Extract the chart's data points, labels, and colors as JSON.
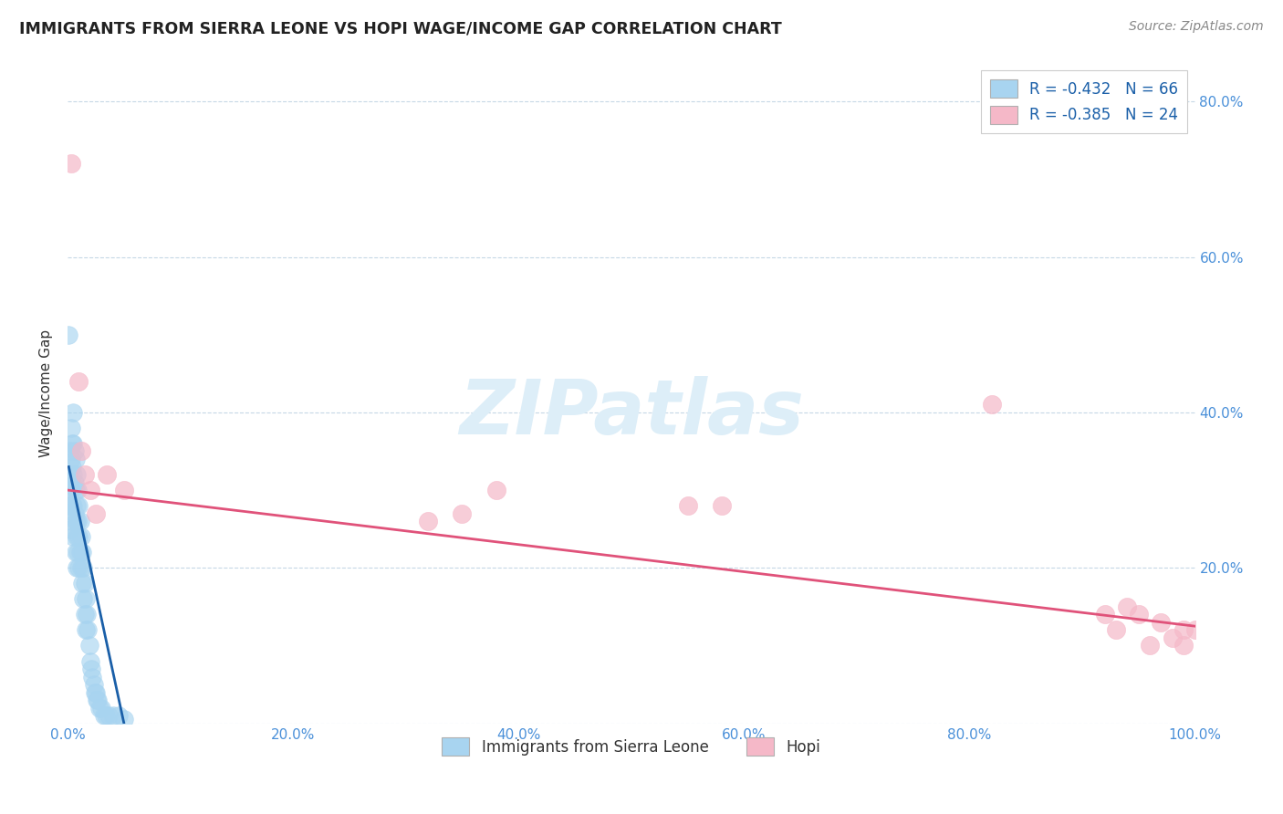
{
  "title": "IMMIGRANTS FROM SIERRA LEONE VS HOPI WAGE/INCOME GAP CORRELATION CHART",
  "source": "Source: ZipAtlas.com",
  "ylabel": "Wage/Income Gap",
  "legend_label_1": "Immigrants from Sierra Leone",
  "legend_label_2": "Hopi",
  "R1": -0.432,
  "N1": 66,
  "R2": -0.385,
  "N2": 24,
  "color1": "#a8d4f0",
  "color2": "#f5b8c8",
  "line_color1": "#1a5fa8",
  "line_color2": "#e0527a",
  "watermark_color": "#ddeef8",
  "xlim": [
    0.0,
    1.0
  ],
  "ylim": [
    0.0,
    0.85
  ],
  "xticks": [
    0.0,
    0.2,
    0.4,
    0.6,
    0.8,
    1.0
  ],
  "yticks": [
    0.0,
    0.2,
    0.4,
    0.6,
    0.8
  ],
  "xtick_labels": [
    "0.0%",
    "20.0%",
    "40.0%",
    "60.0%",
    "80.0%",
    "100.0%"
  ],
  "ytick_labels_right": [
    "",
    "20.0%",
    "40.0%",
    "60.0%",
    "80.0%"
  ],
  "blue_points_x": [
    0.001,
    0.001,
    0.002,
    0.002,
    0.002,
    0.003,
    0.003,
    0.003,
    0.003,
    0.004,
    0.004,
    0.004,
    0.005,
    0.005,
    0.005,
    0.005,
    0.005,
    0.006,
    0.006,
    0.006,
    0.007,
    0.007,
    0.007,
    0.007,
    0.008,
    0.008,
    0.008,
    0.008,
    0.009,
    0.009,
    0.009,
    0.01,
    0.01,
    0.01,
    0.011,
    0.011,
    0.012,
    0.012,
    0.013,
    0.013,
    0.014,
    0.014,
    0.015,
    0.015,
    0.016,
    0.016,
    0.017,
    0.018,
    0.019,
    0.02,
    0.021,
    0.022,
    0.023,
    0.024,
    0.025,
    0.026,
    0.027,
    0.028,
    0.03,
    0.032,
    0.034,
    0.036,
    0.04,
    0.045,
    0.05,
    0.001
  ],
  "blue_points_y": [
    0.32,
    0.28,
    0.35,
    0.3,
    0.25,
    0.38,
    0.34,
    0.3,
    0.26,
    0.36,
    0.33,
    0.28,
    0.4,
    0.36,
    0.32,
    0.28,
    0.24,
    0.35,
    0.31,
    0.27,
    0.34,
    0.3,
    0.26,
    0.22,
    0.32,
    0.28,
    0.24,
    0.2,
    0.3,
    0.26,
    0.22,
    0.28,
    0.24,
    0.2,
    0.26,
    0.22,
    0.24,
    0.2,
    0.22,
    0.18,
    0.2,
    0.16,
    0.18,
    0.14,
    0.16,
    0.12,
    0.14,
    0.12,
    0.1,
    0.08,
    0.07,
    0.06,
    0.05,
    0.04,
    0.04,
    0.03,
    0.03,
    0.02,
    0.02,
    0.01,
    0.01,
    0.01,
    0.01,
    0.01,
    0.005,
    0.5
  ],
  "pink_points_x": [
    0.003,
    0.01,
    0.012,
    0.015,
    0.02,
    0.025,
    0.035,
    0.05,
    0.32,
    0.35,
    0.38,
    0.55,
    0.58,
    0.82,
    0.92,
    0.93,
    0.94,
    0.95,
    0.96,
    0.97,
    0.98,
    0.99,
    0.99,
    1.0
  ],
  "pink_points_y": [
    0.72,
    0.44,
    0.35,
    0.32,
    0.3,
    0.27,
    0.32,
    0.3,
    0.26,
    0.27,
    0.3,
    0.28,
    0.28,
    0.41,
    0.14,
    0.12,
    0.15,
    0.14,
    0.1,
    0.13,
    0.11,
    0.1,
    0.12,
    0.12
  ],
  "blue_line_x": [
    0.001,
    0.05
  ],
  "blue_line_y": [
    0.33,
    0.0
  ],
  "pink_line_x": [
    0.0,
    1.0
  ],
  "pink_line_y": [
    0.3,
    0.125
  ]
}
